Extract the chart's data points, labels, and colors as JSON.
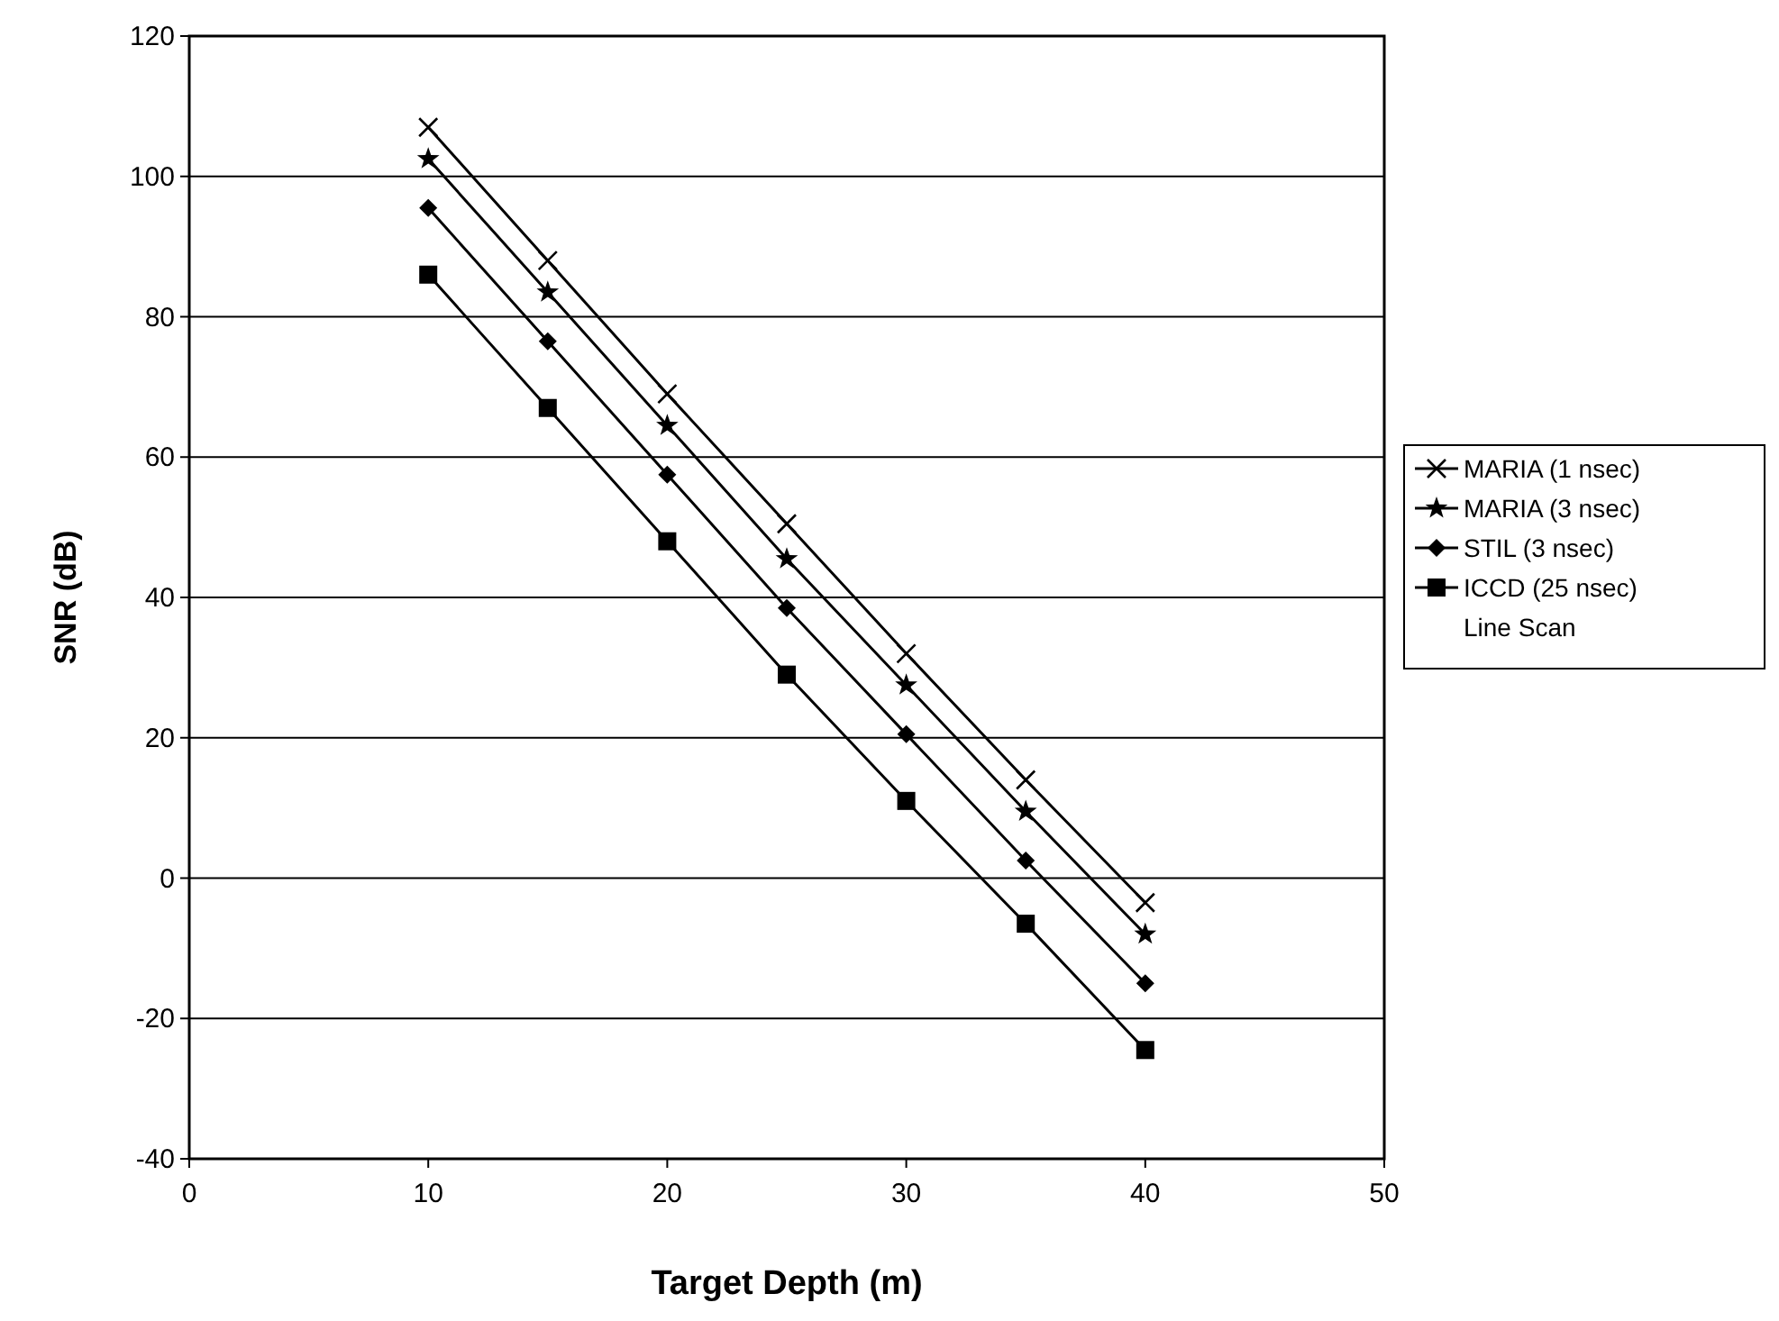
{
  "chart_data": {
    "type": "line",
    "xlabel": "Target Depth (m)",
    "ylabel": "SNR (dB)",
    "x": [
      10,
      15,
      20,
      25,
      30,
      35,
      40
    ],
    "xlim": [
      0,
      50
    ],
    "xticks": [
      0,
      10,
      20,
      30,
      40,
      50
    ],
    "ylim": [
      -40,
      120
    ],
    "yticks": [
      -40,
      -20,
      0,
      20,
      40,
      60,
      80,
      100,
      120
    ],
    "grid": "y",
    "legend": "right",
    "series": [
      {
        "name": "MARIA (1 nsec)",
        "color": "#000000",
        "marker": "cross",
        "values": [
          107,
          88,
          69,
          50.5,
          32,
          14,
          -3.5
        ]
      },
      {
        "name": "MARIA (3 nsec)",
        "color": "#000000",
        "marker": "star",
        "values": [
          102.5,
          83.5,
          64.5,
          45.5,
          27.5,
          9.5,
          -8
        ]
      },
      {
        "name": "STIL (3 nsec)",
        "color": "#000000",
        "marker": "diamond",
        "values": [
          95.5,
          76.5,
          57.5,
          38.5,
          20.5,
          2.5,
          -15
        ]
      },
      {
        "name": "ICCD (25 nsec)",
        "color": "#000000",
        "marker": "square",
        "values": [
          86,
          67,
          48,
          29,
          11,
          -6.5,
          -24.5
        ]
      }
    ],
    "annotations": [
      "Line Scan"
    ]
  }
}
